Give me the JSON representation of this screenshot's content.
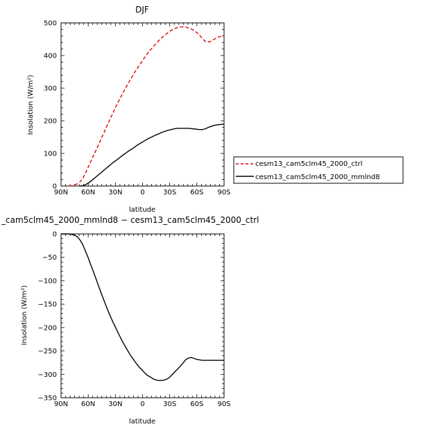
{
  "chart_data": [
    {
      "type": "line",
      "title": "DJF",
      "xlabel": "latitude",
      "ylabel": "Insolation (W/m²)",
      "xlim": [
        90,
        -90
      ],
      "ylim": [
        0,
        500
      ],
      "xticks": [
        90,
        60,
        30,
        0,
        -30,
        -60,
        -90
      ],
      "xtick_labels": [
        "90N",
        "60N",
        "30N",
        "0",
        "30S",
        "60S",
        "90S"
      ],
      "yticks": [
        0,
        100,
        200,
        300,
        400,
        500
      ],
      "ytick_labels": [
        "0",
        "100",
        "200",
        "300",
        "400",
        "500"
      ],
      "grid": false,
      "legend_position": "right",
      "series": [
        {
          "name": "cesm13_cam5clm45_2000_ctrl",
          "color": "#e00000",
          "dash": true,
          "x": [
            81,
            78,
            75,
            72,
            69,
            66,
            63,
            60,
            57,
            54,
            51,
            48,
            45,
            42,
            39,
            36,
            33,
            30,
            27,
            24,
            21,
            18,
            15,
            12,
            9,
            6,
            3,
            0,
            -3,
            -6,
            -9,
            -12,
            -15,
            -18,
            -21,
            -24,
            -27,
            -30,
            -33,
            -36,
            -39,
            -42,
            -45,
            -48,
            -51,
            -54,
            -57,
            -60,
            -63,
            -66,
            -69,
            -72,
            -75,
            -78,
            -81,
            -84,
            -87,
            -90
          ],
          "y": [
            0,
            1,
            3,
            7,
            13,
            23,
            40,
            58,
            76,
            94,
            112,
            130,
            149,
            167,
            186,
            205,
            222,
            240,
            257,
            273,
            289,
            304,
            319,
            333,
            347,
            360,
            372,
            385,
            397,
            408,
            418,
            428,
            437,
            446,
            454,
            461,
            468,
            474,
            479,
            483,
            486,
            488,
            488,
            487,
            484,
            481,
            477,
            470,
            462,
            452,
            444,
            441,
            443,
            448,
            453,
            457,
            459,
            460
          ]
        },
        {
          "name": "cesm13_cam5clm45_2000_mmlnd8",
          "color": "#000000",
          "dash": false,
          "x": [
            69,
            66,
            63,
            60,
            57,
            54,
            51,
            48,
            45,
            42,
            39,
            36,
            33,
            30,
            27,
            24,
            21,
            18,
            15,
            12,
            9,
            6,
            3,
            0,
            -3,
            -6,
            -9,
            -12,
            -15,
            -18,
            -21,
            -24,
            -27,
            -30,
            -33,
            -36,
            -39,
            -42,
            -45,
            -48,
            -51,
            -54,
            -57,
            -60,
            -63,
            -66,
            -69,
            -72,
            -75,
            -78,
            -81,
            -84,
            -87,
            -90
          ],
          "y": [
            0,
            1,
            4,
            9,
            15,
            22,
            29,
            36,
            43,
            50,
            57,
            64,
            71,
            77,
            83,
            90,
            96,
            102,
            108,
            113,
            119,
            125,
            130,
            135,
            140,
            145,
            149,
            153,
            157,
            160,
            164,
            167,
            170,
            172,
            174,
            176,
            177,
            177,
            177,
            177,
            177,
            176,
            175,
            174,
            173,
            173,
            175,
            179,
            182,
            185,
            187,
            188,
            189,
            190
          ]
        }
      ]
    },
    {
      "type": "line",
      "title": "_cam5clm45_2000_mmlnd8 − cesm13_cam5clm45_2000_ctrl",
      "xlabel": "latitude",
      "ylabel": "Insolation (W/m²)",
      "xlim": [
        90,
        -90
      ],
      "ylim": [
        -350,
        0
      ],
      "xticks": [
        90,
        60,
        30,
        0,
        -30,
        -60,
        -90
      ],
      "xtick_labels": [
        "90N",
        "60N",
        "30N",
        "0",
        "30S",
        "60S",
        "90S"
      ],
      "yticks": [
        0,
        -50,
        -100,
        -150,
        -200,
        -250,
        -300,
        -350
      ],
      "ytick_labels": [
        "0",
        "−50",
        "−100",
        "−150",
        "−200",
        "−250",
        "−300",
        "−350"
      ],
      "grid": false,
      "series": [
        {
          "color": "#000000",
          "dash": false,
          "x": [
            90,
            87,
            84,
            81,
            78,
            75,
            72,
            69,
            66,
            63,
            60,
            57,
            54,
            51,
            48,
            45,
            42,
            39,
            36,
            33,
            30,
            27,
            24,
            21,
            18,
            15,
            12,
            9,
            6,
            3,
            0,
            -3,
            -6,
            -9,
            -12,
            -15,
            -18,
            -21,
            -24,
            -27,
            -30,
            -33,
            -36,
            -39,
            -42,
            -45,
            -48,
            -51,
            -54,
            -57,
            -60,
            -63,
            -66,
            -69,
            -72,
            -75,
            -78,
            -81,
            -84,
            -87,
            -90
          ],
          "y": [
            0,
            0,
            0,
            0,
            -1,
            -3,
            -6,
            -13,
            -23,
            -37,
            -51,
            -67,
            -82,
            -98,
            -114,
            -130,
            -145,
            -160,
            -174,
            -187,
            -199,
            -211,
            -223,
            -234,
            -244,
            -254,
            -263,
            -271,
            -279,
            -286,
            -292,
            -298,
            -303,
            -306,
            -310,
            -312,
            -313,
            -313,
            -312,
            -310,
            -306,
            -300,
            -294,
            -288,
            -282,
            -275,
            -268,
            -265,
            -264,
            -266,
            -268,
            -269,
            -270,
            -270,
            -270,
            -270,
            -270,
            -270,
            -270,
            -270,
            -270
          ]
        }
      ]
    }
  ]
}
